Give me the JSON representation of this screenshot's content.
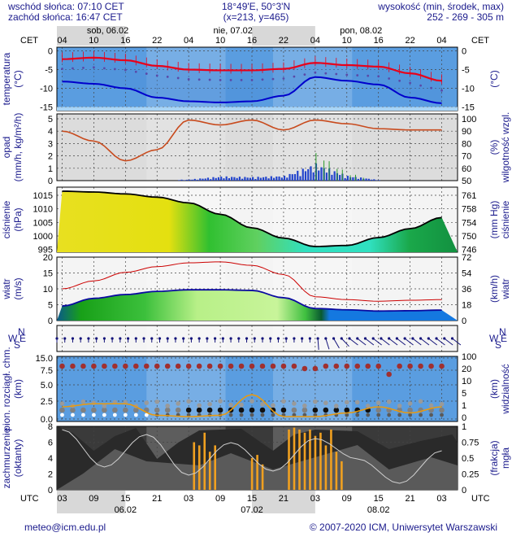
{
  "header": {
    "sunrise": "wschód słońca: 07:10 CET",
    "sunset": "zachód słońca: 16:47 CET",
    "coords": "18°49'E, 50°3'N",
    "grid": "(x=213, y=465)",
    "altitude_title": "wysokość (min, środek, max)",
    "altitude_values": "252 - 269 - 305 m"
  },
  "time_axis": {
    "top_zone": "CET",
    "bottom_zone": "UTC",
    "top_hours": [
      "04",
      "10",
      "16",
      "22",
      "04",
      "10",
      "16",
      "22",
      "04",
      "10",
      "16",
      "22",
      "04"
    ],
    "bottom_hours": [
      "03",
      "09",
      "15",
      "21",
      "03",
      "09",
      "15",
      "21",
      "03",
      "09",
      "15",
      "21",
      "03"
    ],
    "top_days": [
      "sob, 06.02",
      "nie, 07.02",
      "pon, 08.02"
    ],
    "bottom_days": [
      "06.02",
      "07.02",
      "08.02"
    ]
  },
  "footer": {
    "email": "meteo@icm.edu.pl",
    "copyright": "© 2007-2020 ICM, Uniwersytet Warszawski"
  },
  "colors": {
    "title_blue": "#1a1a8c",
    "temperature_line": "#e8001a",
    "dewpoint_line": "#0000cc",
    "humidity_line": "#c84b1e",
    "precip_bar": "#2244cc",
    "pressure_line": "#000000",
    "wind_gust": "#cc0000",
    "visibility_line": "#e89a10",
    "fog_bar": "#f0a020"
  },
  "chart_data": [
    {
      "id": "temperature",
      "type": "line",
      "left_label": [
        "temperatura",
        "(°C)"
      ],
      "right_label": [
        "(°C)"
      ],
      "left_ticks": [
        "0",
        "-5",
        "-10",
        "-15"
      ],
      "right_ticks": [
        "0",
        "-5",
        "-10",
        "-15"
      ],
      "ylim": [
        -16,
        1
      ],
      "x": [
        0,
        6,
        12,
        18,
        24,
        30,
        36,
        42,
        48,
        54,
        60,
        66,
        72
      ],
      "series": [
        {
          "values": [
            -2.2,
            -1.8,
            -2.5,
            -4.0,
            -5.0,
            -5.2,
            -5.2,
            -4.8,
            -3.2,
            -3.8,
            -4.2,
            -6.0,
            -8.0
          ]
        },
        {
          "values": [
            -8.2,
            -8.8,
            -10.0,
            -12.5,
            -13.5,
            -13.8,
            -13.5,
            -12.0,
            -7.0,
            -8.0,
            -9.0,
            -12.5,
            -14.0
          ]
        }
      ]
    },
    {
      "id": "precipitation",
      "type": "bar",
      "left_label": [
        "opad",
        "(mm/h, kg/m²/h)"
      ],
      "right_label": [
        "(%)",
        "wilgotność wzgl."
      ],
      "left_ticks": [
        "5",
        "4",
        "3",
        "2",
        "1",
        "0"
      ],
      "right_ticks": [
        "100",
        "90",
        "80",
        "70",
        "60",
        "50"
      ],
      "ylim": [
        0,
        5
      ],
      "ylim_right": [
        50,
        100
      ],
      "humidity": {
        "x": [
          0,
          6,
          12,
          18,
          24,
          30,
          36,
          42,
          48,
          54,
          60,
          66,
          72
        ],
        "values": [
          90,
          82,
          66,
          75,
          99,
          95,
          99,
          91,
          99,
          96,
          92,
          91,
          91
        ]
      },
      "precipitation": {
        "x": [
          24,
          30,
          36,
          42,
          48,
          54,
          60
        ],
        "values": [
          0.1,
          0.35,
          0.3,
          0.4,
          1.4,
          0.4,
          0.05
        ]
      }
    },
    {
      "id": "pressure",
      "type": "area",
      "left_label": [
        "ciśnienie",
        "(hPa)"
      ],
      "right_label": [
        "(mm Hg)",
        "ciśnienie"
      ],
      "left_ticks": [
        "1015",
        "1010",
        "1005",
        "1000",
        "995"
      ],
      "right_ticks": [
        "761",
        "758",
        "754",
        "750",
        "746"
      ],
      "ylim": [
        994,
        1018
      ],
      "x": [
        0,
        6,
        12,
        18,
        24,
        30,
        36,
        42,
        48,
        54,
        60,
        66,
        72
      ],
      "values": [
        1016.5,
        1016.2,
        1015.5,
        1014.3,
        1012.2,
        1008.0,
        1003.0,
        999.2,
        996.1,
        996.5,
        999.4,
        1002.7,
        1006.8
      ]
    },
    {
      "id": "wind",
      "type": "area",
      "left_label": [
        "wiatr",
        "(m/s)"
      ],
      "right_label": [
        "(km/h)",
        "wiatr"
      ],
      "left_ticks": [
        "20",
        "15",
        "10",
        "5",
        "0"
      ],
      "right_ticks": [
        "72",
        "54",
        "36",
        "18",
        "0"
      ],
      "ylim": [
        0,
        20
      ],
      "x": [
        0,
        6,
        12,
        18,
        24,
        30,
        36,
        42,
        48,
        54,
        60,
        66,
        72
      ],
      "speed": [
        4.6,
        7.0,
        8.2,
        9.2,
        9.7,
        9.7,
        9.5,
        7.2,
        3.8,
        3.4,
        3.0,
        3.1,
        3.3
      ],
      "gust": [
        10.0,
        12.5,
        15.2,
        17.0,
        18.2,
        18.5,
        17.4,
        14.5,
        7.5,
        6.6,
        6.1,
        6.4,
        6.6
      ]
    },
    {
      "id": "direction",
      "type": "scatter",
      "left_label": [
        "W",
        "N",
        "E",
        "S"
      ],
      "right_label": [
        "W",
        "N",
        "E",
        "S"
      ]
    },
    {
      "id": "clouds",
      "type": "scatter",
      "left_label": [
        "pion. rozciągł. chm.",
        "(km)"
      ],
      "right_label": [
        "(km)",
        "widzialność"
      ],
      "left_ticks": [
        "15.0",
        "7.5",
        "5.0",
        "2.5",
        "0.0"
      ],
      "right_ticks": [
        "100",
        "20",
        "10",
        "5",
        "1",
        "0"
      ],
      "visibility_km": {
        "x": [
          0,
          6,
          12,
          18,
          24,
          30,
          36,
          42,
          48,
          54,
          60,
          66,
          72
        ],
        "values": [
          1.0,
          2.0,
          2.0,
          0.3,
          0.2,
          0.3,
          5.0,
          0.2,
          0.2,
          0.5,
          1.0,
          0.5,
          1.0
        ]
      }
    },
    {
      "id": "cloud_cover",
      "type": "bar",
      "left_label": [
        "zachmurzenie",
        "(oktanty)"
      ],
      "right_label": [
        "(frakcja)",
        "mgła"
      ],
      "left_ticks": [
        "8",
        "6",
        "4",
        "2",
        "0"
      ],
      "right_ticks": [
        "1",
        "0.75",
        "0.5",
        "0.25",
        "0"
      ],
      "ylim": [
        0,
        8
      ],
      "ylim_right": [
        0,
        1
      ],
      "fog_fraction": {
        "x": [
          25,
          26,
          27,
          28,
          29,
          36,
          37,
          38,
          43,
          44,
          45,
          46,
          47,
          48,
          49,
          50,
          51,
          52,
          53
        ],
        "values": [
          0.75,
          0.7,
          0.9,
          0.6,
          0.7,
          0.5,
          0.55,
          0.4,
          0.95,
          0.98,
          0.95,
          0.9,
          0.95,
          0.85,
          0.9,
          0.7,
          0.95,
          0.6,
          0.45
        ]
      }
    }
  ]
}
